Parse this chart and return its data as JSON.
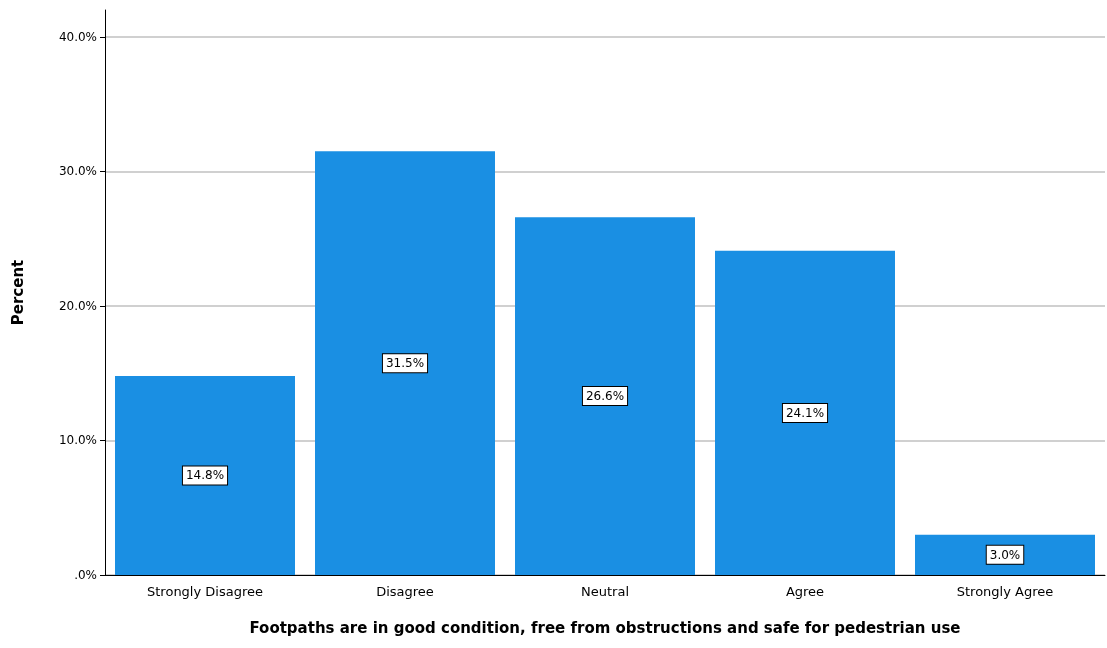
{
  "chart_data": {
    "type": "bar",
    "xlabel": "Footpaths are in good condition, free from obstructions and safe for pedestrian use",
    "ylabel": "Percent",
    "categories": [
      "Strongly Disagree",
      "Disagree",
      "Neutral",
      "Agree",
      "Strongly Agree"
    ],
    "values": [
      14.8,
      31.5,
      26.6,
      24.1,
      3.0
    ],
    "value_labels": [
      "14.8%",
      "31.5%",
      "26.6%",
      "24.1%",
      "3.0%"
    ],
    "color": "#1a8fe3",
    "ylim": [
      0,
      42
    ],
    "yticks": [
      {
        "value": 0,
        "label": ".0%"
      },
      {
        "value": 10,
        "label": "10.0%"
      },
      {
        "value": 20,
        "label": "20.0%"
      },
      {
        "value": 30,
        "label": "30.0%"
      },
      {
        "value": 40,
        "label": "40.0%"
      }
    ],
    "grid": "y"
  }
}
